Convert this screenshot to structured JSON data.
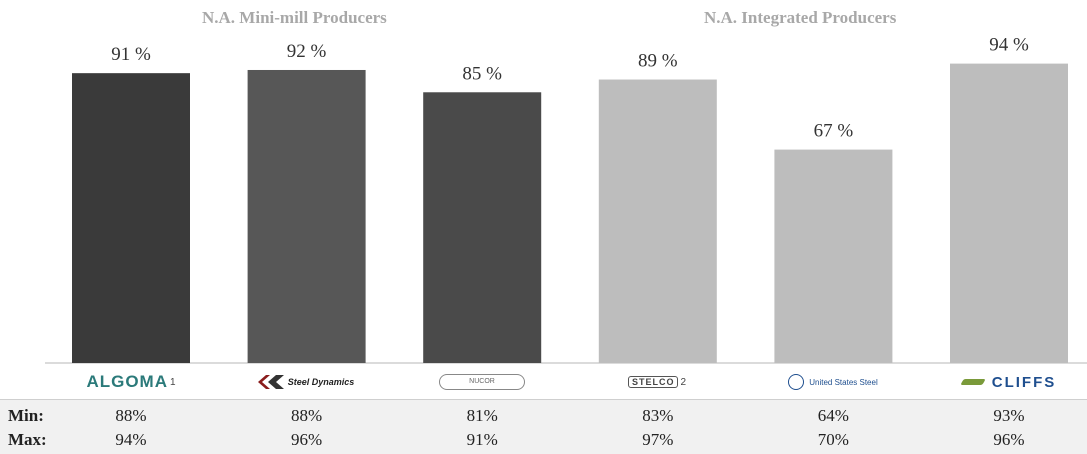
{
  "chart_data": {
    "type": "bar",
    "groups": [
      {
        "name": "N.A. Mini-mill Producers",
        "companies": [
          "Algoma",
          "Steel Dynamics",
          "Nucor"
        ]
      },
      {
        "name": "N.A. Integrated Producers",
        "companies": [
          "Stelco",
          "United States Steel",
          "Cliffs"
        ]
      }
    ],
    "categories": [
      "Algoma",
      "Steel Dynamics",
      "Nucor",
      "Stelco",
      "United States Steel",
      "Cliffs"
    ],
    "values": [
      91,
      92,
      85,
      89,
      67,
      94
    ],
    "data_labels": [
      "91 %",
      "92 %",
      "85 %",
      "89 %",
      "67 %",
      "94 %"
    ],
    "colors": [
      "#3a3a3a",
      "#575757",
      "#4a4a4a",
      "#bdbdbd",
      "#bdbdbd",
      "#bdbdbd"
    ],
    "ylim": [
      0,
      100
    ],
    "min_row": {
      "label": "Min:",
      "values": [
        "88%",
        "88%",
        "81%",
        "83%",
        "64%",
        "93%"
      ]
    },
    "max_row": {
      "label": "Max:",
      "values": [
        "94%",
        "96%",
        "91%",
        "97%",
        "70%",
        "96%"
      ]
    }
  },
  "logos": {
    "algoma": {
      "text": "ALGOMA",
      "note": "1"
    },
    "steel_dynamics": {
      "text": "Steel Dynamics"
    },
    "nucor": {
      "text": "NUCOR"
    },
    "stelco": {
      "text": "STELCO",
      "note": "2"
    },
    "us_steel": {
      "text": "United States Steel"
    },
    "cliffs": {
      "text": "CLIFFS"
    }
  }
}
